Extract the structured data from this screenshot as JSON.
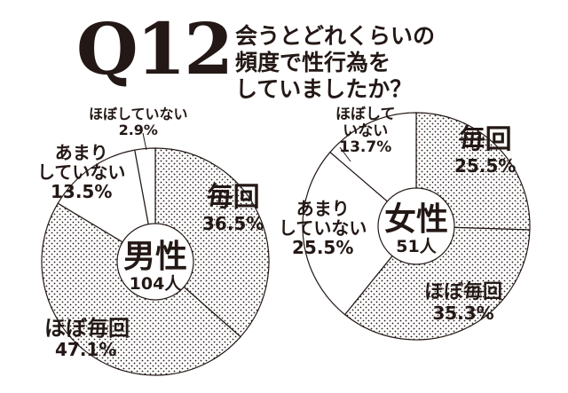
{
  "title": {
    "question_number": "Q12",
    "question_lines": [
      "会うとどれくらいの",
      "頻度で性行為を",
      "していましたか？"
    ]
  },
  "male": {
    "label": "男性",
    "count": "104人",
    "slices": [
      {
        "name": "毎回",
        "percent_label": "36.5%"
      },
      {
        "name": "ほぼ毎回",
        "percent_label": "47.1%"
      },
      {
        "name_lines": [
          "あまり",
          "していない"
        ],
        "percent_label": "13.5%"
      },
      {
        "name": "ほぼしていない",
        "percent_label": "2.9%"
      }
    ]
  },
  "female": {
    "label": "女性",
    "count": "51人",
    "slices": [
      {
        "name": "毎回",
        "percent_label": "25.5%"
      },
      {
        "name": "ほぼ毎回",
        "percent_label": "35.3%"
      },
      {
        "name_lines": [
          "あまり",
          "していない"
        ],
        "percent_label": "25.5%"
      },
      {
        "name_lines": [
          "ほぼして",
          "いない"
        ],
        "percent_label": "13.7%"
      }
    ]
  },
  "chart_data": [
    {
      "type": "pie",
      "title": "男性 104人",
      "categories": [
        "毎回",
        "ほぼ毎回",
        "あまりしていない",
        "ほぼしていない"
      ],
      "values": [
        36.5,
        47.1,
        13.5,
        2.9
      ],
      "donut": true,
      "start_angle": "12 o'clock, clockwise",
      "fill": [
        "dotted",
        "dotted",
        "white",
        "white"
      ]
    },
    {
      "type": "pie",
      "title": "女性 51人",
      "categories": [
        "毎回",
        "ほぼ毎回",
        "あまりしていない",
        "ほぼしていない"
      ],
      "values": [
        25.5,
        35.3,
        25.5,
        13.7
      ],
      "donut": true,
      "start_angle": "12 o'clock, clockwise",
      "fill": [
        "dotted",
        "dotted",
        "white",
        "white"
      ]
    }
  ],
  "colors": {
    "ink": "#231815",
    "background": "#ffffff"
  }
}
